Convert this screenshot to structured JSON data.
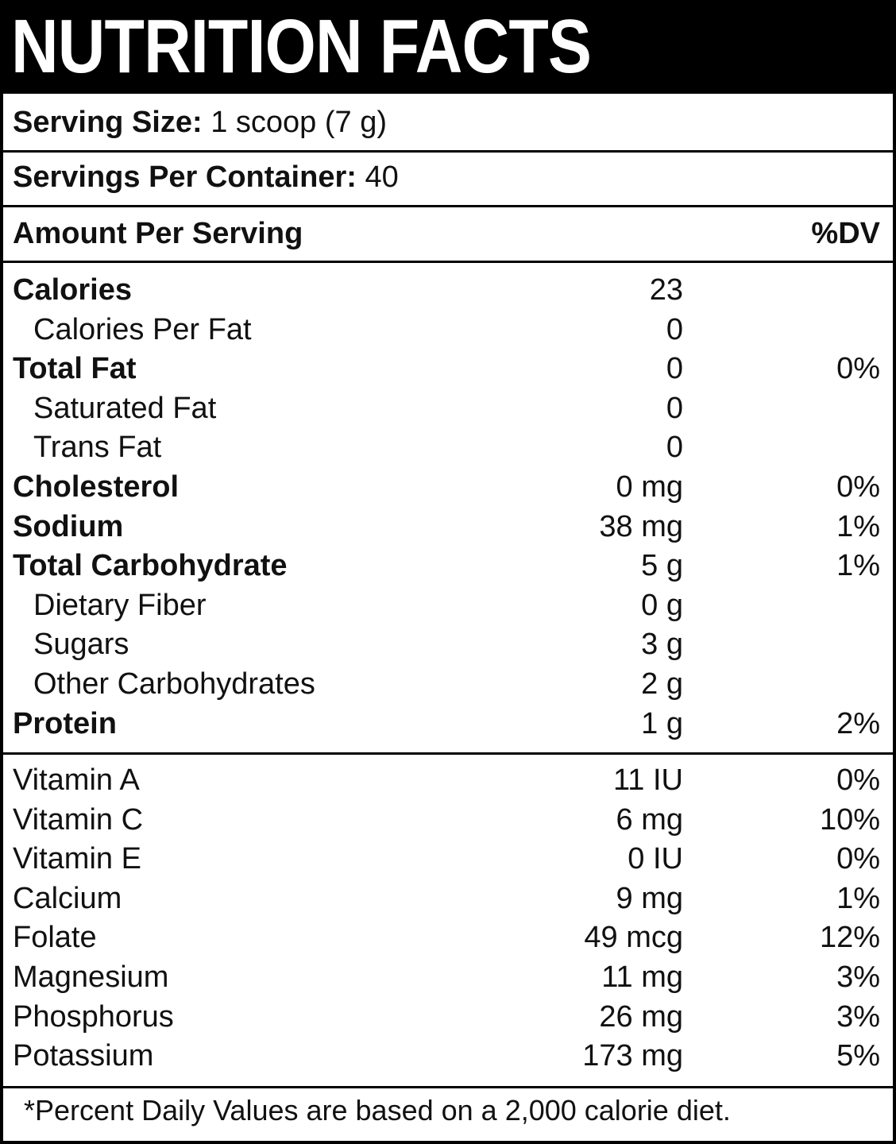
{
  "title": "NUTRITION FACTS",
  "serving_size": {
    "label": "Serving Size:",
    "value": "1 scoop (7 g)"
  },
  "servings_per_container": {
    "label": "Servings Per Container:",
    "value": "40"
  },
  "header": {
    "amount_label": "Amount Per Serving",
    "dv_label": "%DV"
  },
  "nutrients": [
    {
      "name": "Calories",
      "amount": "23",
      "dv": "",
      "style": "main"
    },
    {
      "name": "Calories Per Fat",
      "amount": "0",
      "dv": "",
      "style": "sub"
    },
    {
      "name": "Total Fat",
      "amount": "0",
      "dv": "0%",
      "style": "main"
    },
    {
      "name": "Saturated Fat",
      "amount": "0",
      "dv": "",
      "style": "sub"
    },
    {
      "name": "Trans Fat",
      "amount": "0",
      "dv": "",
      "style": "sub"
    },
    {
      "name": "Cholesterol",
      "amount": "0 mg",
      "dv": "0%",
      "style": "main"
    },
    {
      "name": "Sodium",
      "amount": "38 mg",
      "dv": "1%",
      "style": "main"
    },
    {
      "name": "Total Carbohydrate",
      "amount": "5 g",
      "dv": "1%",
      "style": "main"
    },
    {
      "name": "Dietary Fiber",
      "amount": "0 g",
      "dv": "",
      "style": "sub"
    },
    {
      "name": "Sugars",
      "amount": "3 g",
      "dv": "",
      "style": "sub"
    },
    {
      "name": "Other Carbohydrates",
      "amount": "2 g",
      "dv": "",
      "style": "sub"
    },
    {
      "name": "Protein",
      "amount": "1 g",
      "dv": "2%",
      "style": "main"
    }
  ],
  "vitamins": [
    {
      "name": "Vitamin A",
      "amount": "11 IU",
      "dv": "0%"
    },
    {
      "name": "Vitamin C",
      "amount": "6 mg",
      "dv": "10%"
    },
    {
      "name": "Vitamin E",
      "amount": "0 IU",
      "dv": "0%"
    },
    {
      "name": "Calcium",
      "amount": "9 mg",
      "dv": "1%"
    },
    {
      "name": "Folate",
      "amount": "49 mcg",
      "dv": "12%"
    },
    {
      "name": "Magnesium",
      "amount": "11 mg",
      "dv": "3%"
    },
    {
      "name": "Phosphorus",
      "amount": "26 mg",
      "dv": "3%"
    },
    {
      "name": "Potassium",
      "amount": "173 mg",
      "dv": "5%"
    }
  ],
  "footnote": "*Percent Daily Values are based on a 2,000 calorie diet."
}
